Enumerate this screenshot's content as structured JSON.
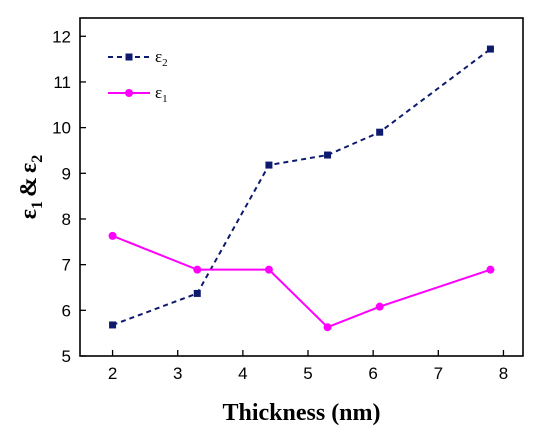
{
  "chart_data": {
    "type": "line",
    "xlabel": "Thickness (nm)",
    "ylabel": {
      "eps": "ε",
      "sub1": "1",
      "amp": "&",
      "sub2": "2"
    },
    "xlim": [
      1.5,
      8.3
    ],
    "ylim": [
      5,
      12.4
    ],
    "xticks": [
      2,
      3,
      4,
      5,
      6,
      7,
      8
    ],
    "yticks": [
      5,
      6,
      7,
      8,
      9,
      10,
      11,
      12
    ],
    "grid": false,
    "legend_position": "top-left",
    "series": [
      {
        "name": "ε2",
        "name_base": "ε",
        "name_sub": "2",
        "color": "#0d1a6e",
        "line_style": "dashed",
        "marker": "square",
        "x": [
          2,
          3.3,
          4.4,
          5.3,
          6.1,
          7.8
        ],
        "y": [
          5.68,
          6.37,
          9.18,
          9.4,
          9.9,
          11.72
        ]
      },
      {
        "name": "ε1",
        "name_base": "ε",
        "name_sub": "1",
        "color": "#ff00ff",
        "line_style": "solid",
        "marker": "circle",
        "x": [
          2,
          3.3,
          4.4,
          5.3,
          6.1,
          7.8
        ],
        "y": [
          7.63,
          6.89,
          6.89,
          5.63,
          6.08,
          6.89
        ]
      }
    ]
  }
}
